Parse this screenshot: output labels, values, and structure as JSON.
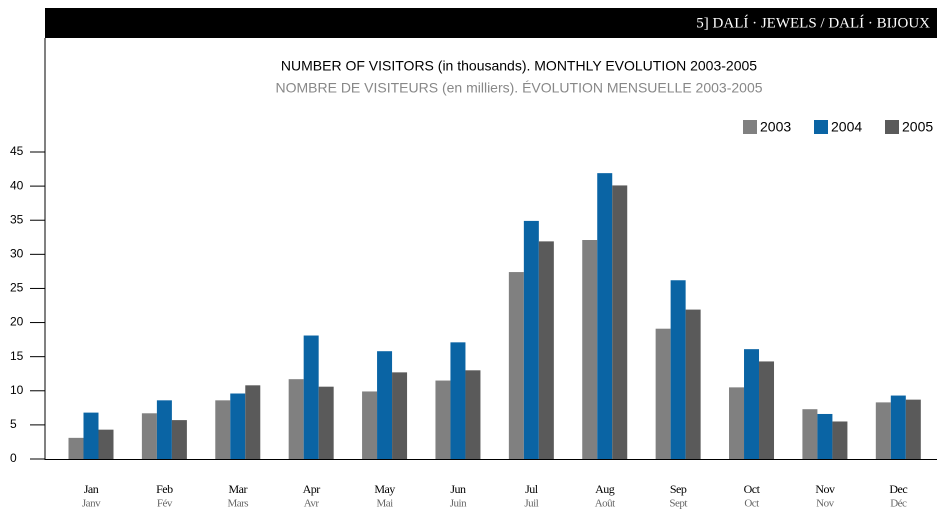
{
  "chart_data": {
    "type": "bar",
    "header": "5] DALÍ · JEWELS / DALÍ · BIJOUX",
    "title": "NUMBER OF VISITORS (in thousands). MONTHLY EVOLUTION 2003-2005",
    "subtitle": "NOMBRE DE VISITEURS (en milliers). ÉVOLUTION MENSUELLE 2003-2005",
    "categories": [
      "Jan",
      "Feb",
      "Mar",
      "Apr",
      "May",
      "Jun",
      "Jul",
      "Aug",
      "Sep",
      "Oct",
      "Nov",
      "Dec"
    ],
    "categories_fr": [
      "Janv",
      "Fév",
      "Mars",
      "Avr",
      "Mai",
      "Juin",
      "Juil",
      "Août",
      "Sept",
      "Oct",
      "Nov",
      "Déc"
    ],
    "series": [
      {
        "name": "2003",
        "color": "#808080",
        "values": [
          3.1,
          6.7,
          8.6,
          11.7,
          9.9,
          11.5,
          27.4,
          32.1,
          19.1,
          10.5,
          7.3,
          8.3
        ]
      },
      {
        "name": "2004",
        "color": "#0a64a4",
        "values": [
          6.8,
          8.6,
          9.6,
          18.1,
          15.8,
          17.1,
          34.9,
          41.9,
          26.2,
          16.1,
          6.6,
          9.3
        ]
      },
      {
        "name": "2005",
        "color": "#5a5a5a",
        "values": [
          4.3,
          5.7,
          10.8,
          10.6,
          12.7,
          13.0,
          31.9,
          40.1,
          21.9,
          14.3,
          5.5,
          8.7
        ]
      }
    ],
    "ylim": [
      0,
      45
    ],
    "yticks": [
      0,
      5,
      10,
      15,
      20,
      25,
      30,
      35,
      40,
      45
    ],
    "legend": "top-right"
  }
}
